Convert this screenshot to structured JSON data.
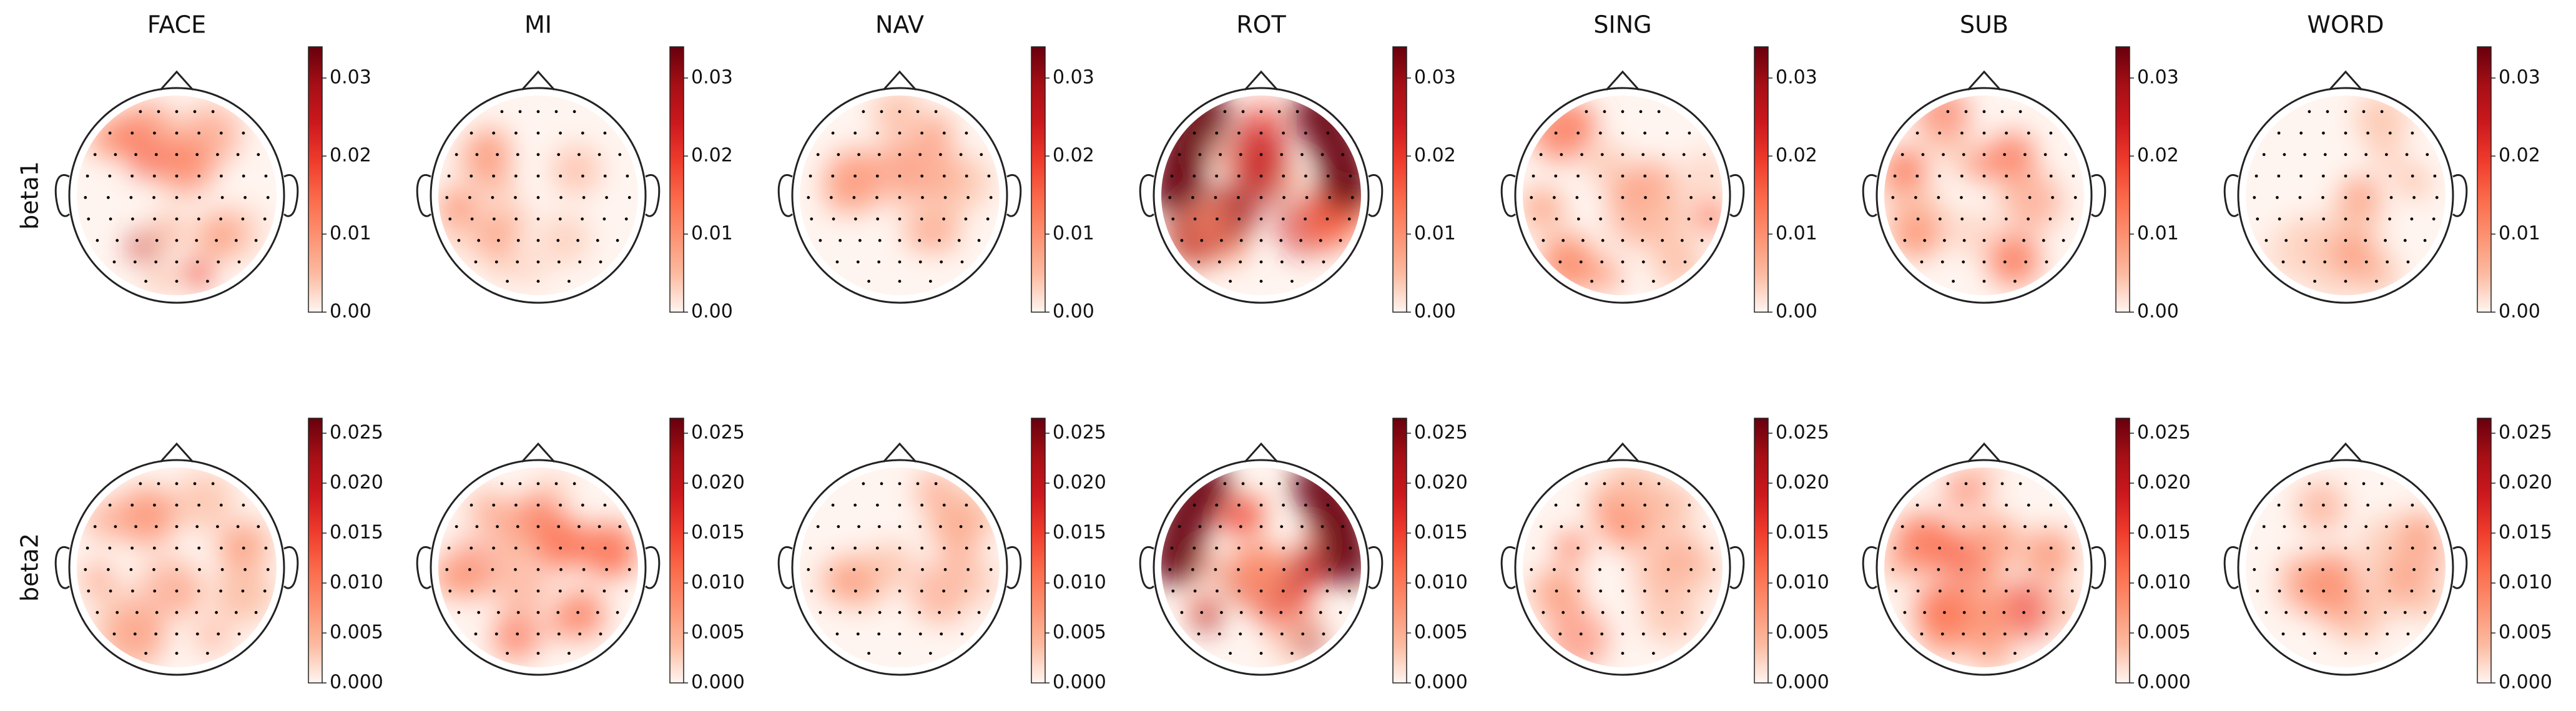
{
  "chart_data": {
    "type": "heatmap",
    "subtype": "eeg-topomap-grid",
    "columns": [
      "FACE",
      "MI",
      "NAV",
      "ROT",
      "SING",
      "SUB",
      "WORD"
    ],
    "rows": [
      {
        "label": "beta1",
        "scale": {
          "min": 0.0,
          "max": 0.034,
          "ticks": [
            0.0,
            0.01,
            0.02,
            0.03
          ],
          "tick_labels": [
            "0.00",
            "0.01",
            "0.02",
            "0.03"
          ]
        }
      },
      {
        "label": "beta2",
        "scale": {
          "min": 0.0,
          "max": 0.0265,
          "ticks": [
            0.0,
            0.005,
            0.01,
            0.015,
            0.02,
            0.025
          ],
          "tick_labels": [
            "0.000",
            "0.005",
            "0.010",
            "0.015",
            "0.020",
            "0.025"
          ]
        }
      }
    ],
    "colormap": "Reds",
    "colormap_stops": [
      "#fff5f0",
      "#fcbba1",
      "#fc9272",
      "#fb6a4a",
      "#ef3b2c",
      "#cb181d",
      "#a50f15",
      "#67000d"
    ],
    "head_outline_color": "#222222",
    "sensor_color": "#000000",
    "grid": false
  }
}
